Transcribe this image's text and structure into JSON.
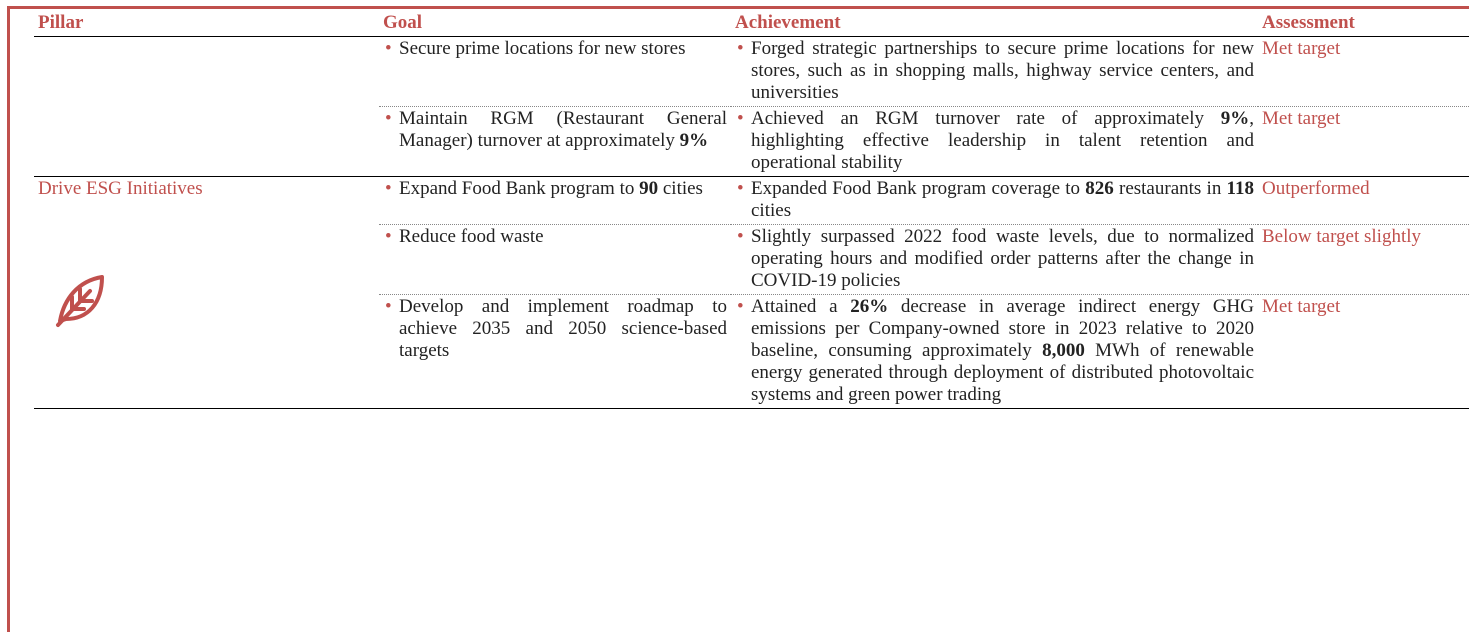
{
  "table": {
    "header": [
      "Pillar",
      "Goal",
      "Achievement",
      "Assessment"
    ],
    "groups": [
      {
        "rows": [
          {
            "goal": [
              "Secure prime locations for new stores"
            ],
            "achievement": [
              "Forged strategic partnerships to secure prime locations for new stores, such as in shopping malls, highway service centers, and universities"
            ],
            "assessment": "Met target"
          },
          {
            "goal": [
              "Maintain RGM (Restaurant General Manager) turnover at approximately ",
              {
                "text": "9%",
                "bold": true
              }
            ],
            "achievement": [
              "Achieved an RGM turnover rate of approximately ",
              {
                "text": "9%",
                "bold": true
              },
              ", highlighting effective leadership in talent retention and operational stability"
            ],
            "assessment": "Met target"
          }
        ]
      },
      {
        "pillar": "Drive ESG Initiatives",
        "rows": [
          {
            "goal": [
              "Expand Food Bank program to ",
              {
                "text": "90",
                "bold": true
              },
              " cities"
            ],
            "achievement": [
              "Expanded Food Bank program coverage to ",
              {
                "text": "826",
                "bold": true
              },
              " restaurants in ",
              {
                "text": "118",
                "bold": true
              },
              " cities"
            ],
            "assessment": "Outperformed"
          },
          {
            "goal": [
              "Reduce food waste"
            ],
            "achievement": [
              "Slightly surpassed 2022 food waste levels, due to normalized operating hours and modified order patterns after the change in COVID-19 policies"
            ],
            "assessment": "Below target slightly"
          },
          {
            "goal": [
              "Develop and implement roadmap to achieve 2035 and 2050 science-based targets"
            ],
            "achievement": [
              "Attained a ",
              {
                "text": "26%",
                "bold": true
              },
              " decrease in average indirect energy GHG emissions per Company-owned store in 2023 relative to 2020 baseline, consuming approximately ",
              {
                "text": "8,000",
                "bold": true
              },
              " MWh of renewable energy generated through deployment of distributed photovoltaic systems and green power trading"
            ],
            "assessment": "Met target"
          }
        ]
      }
    ]
  }
}
